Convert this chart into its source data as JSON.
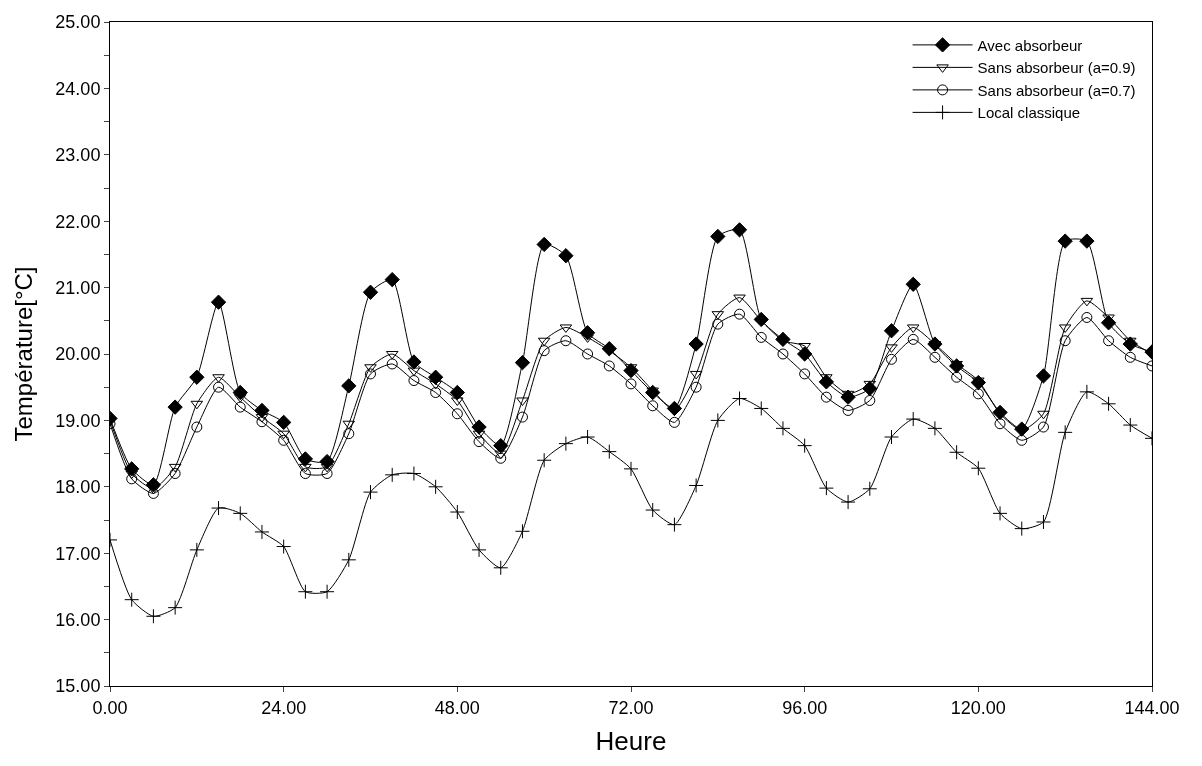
{
  "chart_data": {
    "type": "line",
    "xlabel": "Heure",
    "ylabel": "Température[°C]",
    "x": [
      0,
      3,
      6,
      9,
      12,
      15,
      18,
      21,
      24,
      27,
      30,
      33,
      36,
      39,
      42,
      45,
      48,
      51,
      54,
      57,
      60,
      63,
      66,
      69,
      72,
      75,
      78,
      81,
      84,
      87,
      90,
      93,
      96,
      99,
      102,
      105,
      108,
      111,
      114,
      117,
      120,
      123,
      126,
      129,
      132,
      135,
      138,
      141,
      144
    ],
    "series": [
      {
        "name": "Avec absorbeur",
        "color": "#000000",
        "marker": "diamond",
        "values": [
          19.03,
          18.27,
          18.03,
          19.2,
          19.65,
          20.78,
          19.42,
          19.15,
          18.97,
          18.42,
          18.38,
          19.52,
          20.93,
          21.12,
          19.88,
          19.65,
          19.42,
          18.9,
          18.62,
          19.87,
          21.65,
          21.48,
          20.32,
          20.08,
          19.75,
          19.42,
          19.18,
          20.15,
          21.77,
          21.87,
          20.52,
          20.22,
          20.0,
          19.58,
          19.35,
          19.48,
          20.35,
          21.05,
          20.15,
          19.82,
          19.57,
          19.12,
          18.87,
          19.67,
          21.7,
          21.7,
          20.47,
          20.15,
          20.03
        ]
      },
      {
        "name": "Sans absorbeur (a=0.9)",
        "color": "#000000",
        "marker": "triangle",
        "values": [
          19.0,
          18.2,
          17.97,
          18.3,
          19.25,
          19.65,
          19.35,
          19.05,
          18.8,
          18.3,
          18.3,
          18.95,
          19.8,
          20.0,
          19.75,
          19.55,
          19.3,
          18.8,
          18.5,
          19.3,
          20.2,
          20.4,
          20.25,
          20.05,
          19.8,
          19.45,
          19.15,
          19.7,
          20.6,
          20.85,
          20.5,
          20.2,
          20.12,
          19.65,
          19.4,
          19.55,
          20.1,
          20.4,
          20.15,
          19.85,
          19.6,
          19.1,
          18.85,
          19.1,
          20.4,
          20.8,
          20.55,
          20.2,
          20.0
        ]
      },
      {
        "name": "Sans absorbeur (a=0.7)",
        "color": "#000000",
        "marker": "circle",
        "values": [
          18.95,
          18.12,
          17.9,
          18.2,
          18.9,
          19.5,
          19.2,
          18.98,
          18.7,
          18.2,
          18.2,
          18.8,
          19.7,
          19.85,
          19.6,
          19.42,
          19.1,
          18.68,
          18.43,
          19.05,
          20.05,
          20.2,
          20.0,
          19.82,
          19.55,
          19.22,
          18.97,
          19.5,
          20.45,
          20.6,
          20.25,
          20.0,
          19.7,
          19.35,
          19.15,
          19.3,
          19.92,
          20.22,
          19.95,
          19.65,
          19.4,
          18.95,
          18.7,
          18.9,
          20.2,
          20.55,
          20.2,
          19.95,
          19.82
        ]
      },
      {
        "name": "Local classique",
        "color": "#000000",
        "marker": "cross",
        "values": [
          17.2,
          16.3,
          16.05,
          16.18,
          17.05,
          17.68,
          17.6,
          17.32,
          17.1,
          16.42,
          16.42,
          16.9,
          17.92,
          18.18,
          18.2,
          18.0,
          17.62,
          17.05,
          16.78,
          17.33,
          18.4,
          18.65,
          18.75,
          18.53,
          18.27,
          17.65,
          17.43,
          18.02,
          19.0,
          19.33,
          19.18,
          18.88,
          18.62,
          17.98,
          17.77,
          17.97,
          18.75,
          19.02,
          18.88,
          18.52,
          18.28,
          17.6,
          17.37,
          17.47,
          18.82,
          19.43,
          19.25,
          18.93,
          18.73
        ]
      }
    ],
    "xlim": [
      0,
      144
    ],
    "xticks": [
      {
        "value": 0,
        "label": "0.00"
      },
      {
        "value": 24,
        "label": "24.00"
      },
      {
        "value": 48,
        "label": "48.00"
      },
      {
        "value": 72,
        "label": "72.00"
      },
      {
        "value": 96,
        "label": "96.00"
      },
      {
        "value": 120,
        "label": "120.00"
      },
      {
        "value": 144,
        "label": "144.00"
      }
    ],
    "ylim": [
      15,
      25
    ],
    "yticks": [
      {
        "value": 15,
        "label": "15.00"
      },
      {
        "value": 15.5,
        "label": null
      },
      {
        "value": 16,
        "label": "16.00"
      },
      {
        "value": 16.5,
        "label": null
      },
      {
        "value": 17,
        "label": "17.00"
      },
      {
        "value": 17.5,
        "label": null
      },
      {
        "value": 18,
        "label": "18.00"
      },
      {
        "value": 18.5,
        "label": null
      },
      {
        "value": 19,
        "label": "19.00"
      },
      {
        "value": 19.5,
        "label": null
      },
      {
        "value": 20,
        "label": "20.00"
      },
      {
        "value": 20.5,
        "label": null
      },
      {
        "value": 21,
        "label": "21.00"
      },
      {
        "value": 21.5,
        "label": null
      },
      {
        "value": 22,
        "label": "22.00"
      },
      {
        "value": 22.5,
        "label": null
      },
      {
        "value": 23,
        "label": "23.00"
      },
      {
        "value": 23.5,
        "label": null
      },
      {
        "value": 24,
        "label": "24.00"
      },
      {
        "value": 24.5,
        "label": null
      },
      {
        "value": 25,
        "label": "25.00"
      }
    ],
    "grid": false,
    "legend": "top right",
    "line_style": "solid"
  }
}
